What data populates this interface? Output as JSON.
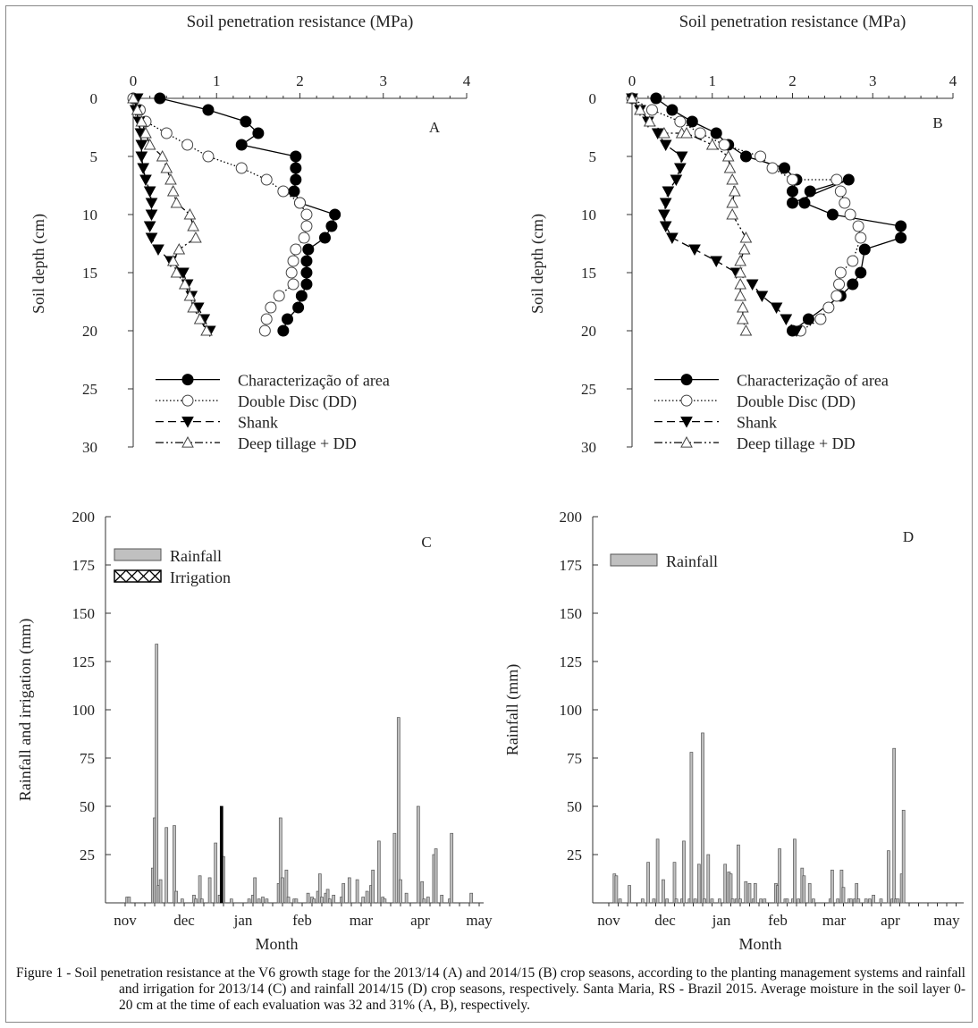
{
  "chart_data": [
    {
      "panel": "A",
      "type": "line",
      "title": "Soil penetration resistance (MPa)",
      "xlabel": "Soil penetration resistance (MPa)",
      "ylabel": "Soil depth (cm)",
      "xlim": [
        0,
        4
      ],
      "ylim": [
        30,
        0
      ],
      "xticks": [
        "0",
        "1",
        "2",
        "3",
        "4"
      ],
      "yticks": [
        "0",
        "5",
        "10",
        "15",
        "20",
        "25",
        "30"
      ],
      "legend_position": "bottom",
      "series": [
        {
          "name": "Characterização of area",
          "marker": "filled-circle",
          "line": "solid",
          "x": [
            0.32,
            0.9,
            1.35,
            1.5,
            1.3,
            1.95,
            1.95,
            1.95,
            1.93,
            2.0,
            2.42,
            2.38,
            2.3,
            2.1,
            2.08,
            2.08,
            2.08,
            2.02,
            1.98,
            1.85,
            1.8
          ],
          "y": [
            0,
            1,
            2,
            3,
            4,
            5,
            6,
            7,
            8,
            9,
            10,
            11,
            12,
            13,
            14,
            15,
            16,
            17,
            18,
            19,
            20
          ]
        },
        {
          "name": "Double Disc (DD)",
          "marker": "open-circle",
          "line": "dotted",
          "x": [
            0.0,
            0.08,
            0.15,
            0.4,
            0.65,
            0.9,
            1.3,
            1.6,
            1.8,
            2.0,
            2.08,
            2.08,
            2.05,
            1.95,
            1.92,
            1.9,
            1.92,
            1.75,
            1.65,
            1.6,
            1.58
          ],
          "y": [
            0,
            1,
            2,
            3,
            4,
            5,
            6,
            7,
            8,
            9,
            10,
            11,
            12,
            13,
            14,
            15,
            16,
            17,
            18,
            19,
            20
          ]
        },
        {
          "name": "Shank",
          "marker": "filled-triangle-down",
          "line": "dashed",
          "x": [
            0.05,
            0.03,
            0.07,
            0.09,
            0.1,
            0.1,
            0.12,
            0.15,
            0.2,
            0.22,
            0.22,
            0.2,
            0.22,
            0.3,
            0.45,
            0.6,
            0.65,
            0.7,
            0.78,
            0.85,
            0.92
          ],
          "y": [
            0,
            1,
            2,
            3,
            4,
            5,
            6,
            7,
            8,
            9,
            10,
            11,
            12,
            13,
            14,
            15,
            16,
            17,
            18,
            19,
            20
          ]
        },
        {
          "name": "Deep tillage + DD",
          "marker": "open-triangle-up",
          "line": "dash-dot-dot",
          "x": [
            0.0,
            0.05,
            0.1,
            0.15,
            0.2,
            0.35,
            0.4,
            0.45,
            0.48,
            0.52,
            0.68,
            0.72,
            0.75,
            0.55,
            0.48,
            0.52,
            0.62,
            0.68,
            0.72,
            0.8,
            0.88
          ],
          "y": [
            0,
            1,
            2,
            3,
            4,
            5,
            6,
            7,
            8,
            9,
            10,
            11,
            12,
            13,
            14,
            15,
            16,
            17,
            18,
            19,
            20
          ]
        }
      ],
      "annotation": "A"
    },
    {
      "panel": "B",
      "type": "line",
      "title": "Soil penetration resistance (MPa)",
      "xlabel": "Soil penetration resistance (MPa)",
      "ylabel": "Soil depth (cm)",
      "xlim": [
        0,
        4
      ],
      "ylim": [
        30,
        0
      ],
      "xticks": [
        "0",
        "1",
        "2",
        "3",
        "4"
      ],
      "yticks": [
        "0",
        "5",
        "10",
        "15",
        "20",
        "25",
        "30"
      ],
      "legend_position": "bottom",
      "series": [
        {
          "name": "Characterização of area",
          "marker": "filled-circle",
          "line": "solid",
          "x": [
            0.3,
            0.5,
            0.75,
            1.05,
            1.2,
            1.42,
            1.9,
            2.05,
            2.0,
            2.0,
            2.7,
            2.22,
            2.15,
            2.5,
            3.35,
            3.35,
            2.9,
            2.85,
            2.75,
            2.6,
            2.2,
            2.0
          ],
          "y": [
            0,
            1,
            2,
            3,
            4,
            5,
            6,
            7,
            8,
            9,
            7,
            8,
            9,
            10,
            11,
            12,
            13,
            15,
            16,
            17,
            19,
            20
          ]
        },
        {
          "name": "Double Disc (DD)",
          "marker": "open-circle",
          "line": "dotted",
          "x": [
            0.0,
            0.25,
            0.6,
            0.85,
            1.15,
            1.6,
            1.75,
            2.0,
            2.55,
            2.6,
            2.65,
            2.72,
            2.82,
            2.85,
            2.75,
            2.6,
            2.58,
            2.55,
            2.45,
            2.35,
            2.1
          ],
          "y": [
            0,
            1,
            2,
            3,
            4,
            5,
            6,
            7,
            7,
            8,
            9,
            10,
            11,
            12,
            14,
            15,
            16,
            17,
            18,
            19,
            20
          ]
        },
        {
          "name": "Shank",
          "marker": "filled-triangle-down",
          "line": "dashed",
          "x": [
            0.0,
            0.1,
            0.2,
            0.32,
            0.42,
            0.62,
            0.6,
            0.55,
            0.45,
            0.42,
            0.4,
            0.42,
            0.5,
            0.78,
            1.05,
            1.3,
            1.5,
            1.62,
            1.8,
            1.92,
            2.05
          ],
          "y": [
            0,
            1,
            2,
            3,
            4,
            5,
            6,
            7,
            8,
            9,
            10,
            11,
            12,
            13,
            14,
            15,
            16,
            17,
            18,
            19,
            20
          ]
        },
        {
          "name": "Deep tillage + DD",
          "marker": "open-triangle-up",
          "line": "dash-dot-dot",
          "x": [
            0.0,
            0.1,
            0.22,
            0.4,
            0.62,
            0.68,
            1.0,
            1.2,
            1.22,
            1.25,
            1.28,
            1.25,
            1.25,
            1.42,
            1.4,
            1.35,
            1.35,
            1.35,
            1.35,
            1.38,
            1.38,
            1.42
          ],
          "y": [
            0,
            1,
            2,
            3,
            3,
            3,
            4,
            5,
            6,
            7,
            8,
            9,
            10,
            12,
            13,
            14,
            15,
            16,
            17,
            18,
            19,
            20
          ]
        }
      ],
      "annotation": "B"
    },
    {
      "panel": "C",
      "type": "bar",
      "xlabel": "Month",
      "ylabel": "Rainfall and irrigation (mm)",
      "ylim": [
        0,
        200
      ],
      "yticks": [
        "25",
        "50",
        "75",
        "100",
        "125",
        "150",
        "175",
        "200"
      ],
      "month_labels": [
        "nov",
        "dec",
        "jan",
        "feb",
        "mar",
        "apr",
        "may"
      ],
      "legend_position": "top-left",
      "series": [
        {
          "name": "Rainfall",
          "x_day": [
            1,
            2,
            14,
            15,
            16,
            17,
            18,
            21,
            25,
            26,
            29,
            35,
            36,
            38,
            39,
            43,
            46,
            48,
            50,
            54,
            63,
            65,
            66,
            68,
            70,
            72,
            78,
            79,
            80,
            82,
            83,
            86,
            87,
            93,
            95,
            96,
            98,
            99,
            100,
            102,
            103,
            104,
            106,
            110,
            111,
            114,
            118,
            121,
            123,
            125,
            126,
            129,
            131,
            132,
            137,
            139,
            140,
            143,
            149,
            151,
            152,
            154,
            157,
            158,
            161,
            165,
            166,
            176
          ],
          "values": [
            3,
            3,
            18,
            44,
            134,
            9,
            12,
            39,
            40,
            6,
            2,
            4,
            2,
            14,
            2,
            13,
            31,
            4,
            24,
            2,
            2,
            4,
            13,
            2,
            3,
            2,
            10,
            44,
            13,
            17,
            3,
            2,
            2,
            5,
            3,
            2,
            6,
            15,
            3,
            5,
            7,
            2,
            4,
            3,
            10,
            13,
            12,
            3,
            6,
            9,
            17,
            32,
            3,
            2,
            36,
            96,
            12,
            5,
            50,
            11,
            2,
            3,
            25,
            28,
            4,
            2,
            36,
            5
          ]
        },
        {
          "name": "Irrigation",
          "x_day": [
            49
          ],
          "values": [
            50
          ]
        }
      ],
      "annotation": "C"
    },
    {
      "panel": "D",
      "type": "bar",
      "xlabel": "Month",
      "ylabel": "Rainfall (mm)",
      "ylim": [
        0,
        200
      ],
      "yticks": [
        "25",
        "50",
        "75",
        "100",
        "125",
        "150",
        "175",
        "200"
      ],
      "month_labels": [
        "nov",
        "dec",
        "jan",
        "feb",
        "mar",
        "apr",
        "may"
      ],
      "legend_position": "top-left",
      "series": [
        {
          "name": "Rainfall",
          "x_day": [
            3,
            4,
            6,
            11,
            18,
            21,
            24,
            26,
            29,
            31,
            35,
            36,
            39,
            40,
            43,
            44,
            46,
            48,
            50,
            51,
            53,
            55,
            59,
            62,
            64,
            65,
            66,
            68,
            69,
            70,
            73,
            75,
            77,
            78,
            81,
            83,
            89,
            90,
            91,
            94,
            95,
            98,
            99,
            101,
            103,
            104,
            107,
            109,
            118,
            119,
            122,
            124,
            125,
            128,
            129,
            131,
            132,
            133,
            137,
            139,
            141,
            145,
            149,
            151,
            152,
            153,
            154,
            156,
            157
          ],
          "values": [
            15,
            14,
            2,
            9,
            2,
            21,
            2,
            33,
            12,
            2,
            21,
            2,
            2,
            32,
            2,
            78,
            2,
            20,
            88,
            2,
            25,
            2,
            2,
            20,
            16,
            15,
            2,
            2,
            30,
            2,
            11,
            10,
            2,
            10,
            2,
            2,
            10,
            9,
            28,
            2,
            2,
            2,
            33,
            2,
            18,
            14,
            10,
            2,
            2,
            17,
            2,
            17,
            8,
            2,
            2,
            2,
            10,
            2,
            2,
            2,
            4,
            2,
            27,
            2,
            80,
            2,
            2,
            15,
            48
          ]
        }
      ],
      "annotation": "D"
    }
  ],
  "caption": {
    "label": "Figure 1 - ",
    "text": "Soil penetration resistance at the V6 growth stage for the 2013/14 (A) and 2014/15 (B) crop seasons, according to the planting management systems and rainfall and irrigation for 2013/14 (C) and rainfall 2014/15 (D) crop seasons, respectively. Santa Maria, RS - Brazil 2015. Average moisture in the soil layer 0-20 cm at the time of each evaluation was 32 and 31% (A, B), respectively."
  },
  "colors": {
    "rainfall_bar": "#c0c0c0",
    "bar_edge": "#555555",
    "irrigation_bar": "#000000",
    "line": "#000000"
  }
}
